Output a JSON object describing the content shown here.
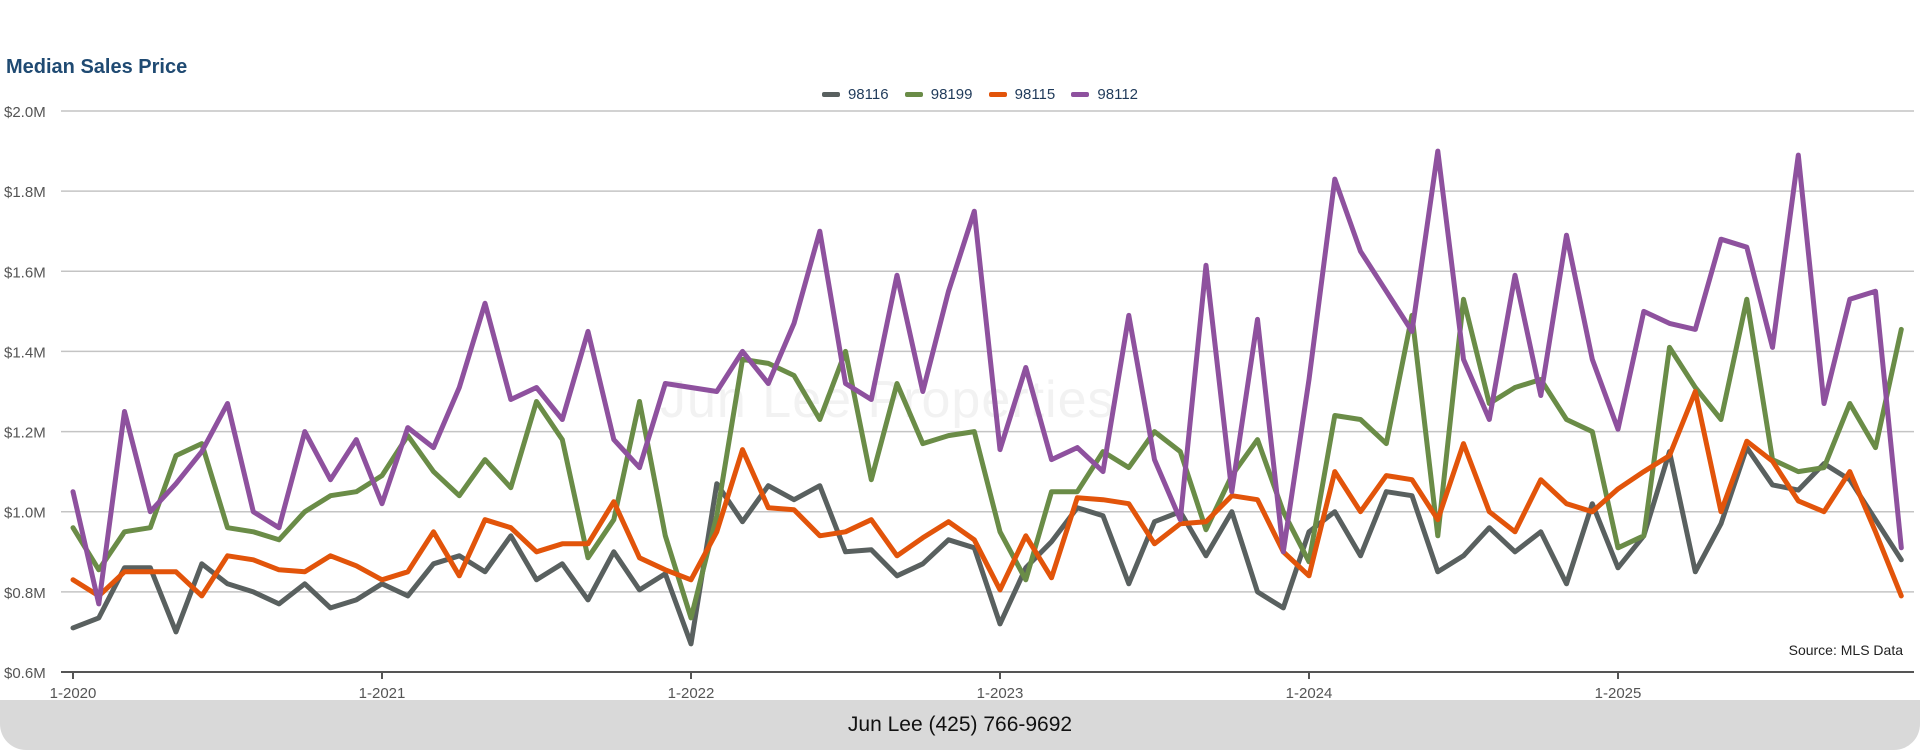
{
  "chart_data": {
    "type": "line",
    "title": "Median Sales Price",
    "xlabel": "",
    "ylabel": "",
    "ylim": [
      0.6,
      2.0
    ],
    "y_ticks": [
      "$0.6M",
      "$0.8M",
      "$1.0M",
      "$1.2M",
      "$1.4M",
      "$1.6M",
      "$1.8M",
      "$2.0M"
    ],
    "y_tick_values": [
      0.6,
      0.8,
      1.0,
      1.2,
      1.4,
      1.6,
      1.8,
      2.0
    ],
    "x_ticks": [
      "1-2020",
      "1-2021",
      "1-2022",
      "1-2023",
      "1-2024",
      "1-2025"
    ],
    "x_start": "1-2020",
    "x_end": "12-2025",
    "x_frequency": "monthly",
    "grid": true,
    "legend_position": "top-center",
    "y_unit": "$M",
    "series": [
      {
        "name": "98116",
        "color": "#59605f",
        "values": [
          0.71,
          0.735,
          0.86,
          0.86,
          0.7,
          0.87,
          0.82,
          0.8,
          0.77,
          0.82,
          0.76,
          0.78,
          0.82,
          0.79,
          0.87,
          0.89,
          0.85,
          0.94,
          0.83,
          0.87,
          0.78,
          0.9,
          0.805,
          0.845,
          0.67,
          1.07,
          0.975,
          1.065,
          1.03,
          1.065,
          0.9,
          0.905,
          0.84,
          0.87,
          0.93,
          0.91,
          0.72,
          0.86,
          0.925,
          1.01,
          0.99,
          0.82,
          0.975,
          1.0,
          0.89,
          1.0,
          0.8,
          0.76,
          0.95,
          1.0,
          0.89,
          1.05,
          1.04,
          0.85,
          0.89,
          0.96,
          0.9,
          0.95,
          0.82,
          1.02,
          0.86,
          0.94,
          1.15,
          0.85,
          0.97,
          1.16,
          1.067,
          1.054,
          1.12,
          1.08,
          0.98,
          0.88
        ]
      },
      {
        "name": "98199",
        "color": "#6a8c47",
        "values": [
          0.96,
          0.855,
          0.95,
          0.96,
          1.14,
          1.17,
          0.96,
          0.95,
          0.93,
          1.0,
          1.04,
          1.05,
          1.09,
          1.19,
          1.1,
          1.04,
          1.13,
          1.06,
          1.275,
          1.18,
          0.885,
          0.98,
          1.275,
          0.94,
          0.735,
          0.99,
          1.38,
          1.37,
          1.34,
          1.23,
          1.4,
          1.08,
          1.32,
          1.17,
          1.19,
          1.2,
          0.95,
          0.83,
          1.05,
          1.05,
          1.15,
          1.11,
          1.2,
          1.15,
          0.955,
          1.09,
          1.18,
          1.0,
          0.875,
          1.24,
          1.23,
          1.17,
          1.49,
          0.94,
          1.53,
          1.27,
          1.31,
          1.33,
          1.23,
          1.2,
          0.91,
          0.94,
          1.41,
          1.31,
          1.23,
          1.53,
          1.13,
          1.1,
          1.11,
          1.27,
          1.16,
          1.455
        ]
      },
      {
        "name": "98115",
        "color": "#e2540a",
        "values": [
          0.83,
          0.79,
          0.85,
          0.85,
          0.85,
          0.79,
          0.89,
          0.88,
          0.855,
          0.85,
          0.89,
          0.865,
          0.83,
          0.85,
          0.95,
          0.84,
          0.98,
          0.96,
          0.9,
          0.92,
          0.92,
          1.025,
          0.885,
          0.855,
          0.83,
          0.95,
          1.155,
          1.01,
          1.005,
          0.94,
          0.95,
          0.98,
          0.89,
          0.935,
          0.975,
          0.93,
          0.805,
          0.94,
          0.835,
          1.035,
          1.03,
          1.02,
          0.92,
          0.97,
          0.975,
          1.04,
          1.03,
          0.9,
          0.84,
          1.1,
          1.0,
          1.09,
          1.08,
          0.98,
          1.17,
          1.0,
          0.95,
          1.08,
          1.02,
          1.0,
          1.057,
          1.1,
          1.14,
          1.3,
          1.0,
          1.176,
          1.126,
          1.027,
          1.0,
          1.1,
          0.95,
          0.79
        ]
      },
      {
        "name": "98112",
        "color": "#8e519e",
        "values": [
          1.05,
          0.77,
          1.25,
          1.0,
          1.07,
          1.15,
          1.27,
          1.0,
          0.96,
          1.2,
          1.08,
          1.18,
          1.02,
          1.21,
          1.16,
          1.31,
          1.52,
          1.28,
          1.31,
          1.23,
          1.45,
          1.18,
          1.11,
          1.32,
          1.31,
          1.3,
          1.4,
          1.32,
          1.47,
          1.7,
          1.32,
          1.28,
          1.59,
          1.3,
          1.55,
          1.75,
          1.155,
          1.36,
          1.13,
          1.16,
          1.1,
          1.49,
          1.13,
          0.98,
          1.615,
          1.05,
          1.48,
          0.9,
          1.33,
          1.83,
          1.65,
          1.55,
          1.45,
          1.9,
          1.38,
          1.23,
          1.59,
          1.29,
          1.69,
          1.38,
          1.206,
          1.5,
          1.47,
          1.455,
          1.68,
          1.66,
          1.41,
          1.89,
          1.27,
          1.53,
          1.55,
          0.91
        ]
      }
    ],
    "annotations": [
      "Source: MLS Data"
    ]
  },
  "watermark": "Jun Lee Properties",
  "footer": {
    "contact": "Jun Lee (425) 766-9692"
  }
}
